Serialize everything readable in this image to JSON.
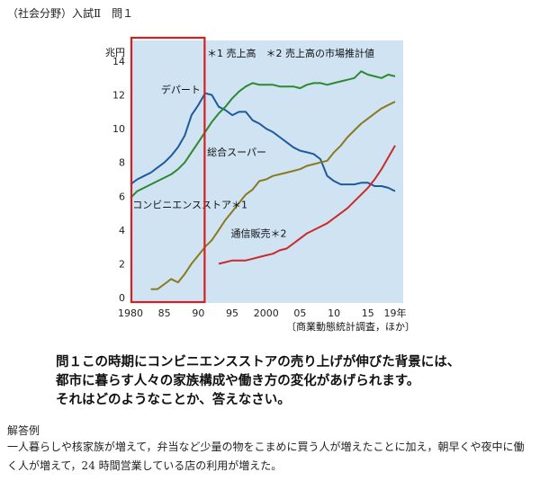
{
  "header": "（社会分野）入試Ⅱ　問１",
  "chart_data": {
    "type": "line",
    "unit_label": "兆円",
    "xlabel": "",
    "ylabel": "",
    "xlim": [
      1980,
      2019
    ],
    "ylim": [
      0,
      14
    ],
    "y_ticks": [
      "0",
      "2",
      "4",
      "6",
      "8",
      "10",
      "12",
      "14"
    ],
    "x_ticks": [
      {
        "value": 1980,
        "label": "1980"
      },
      {
        "value": 1985,
        "label": "85"
      },
      {
        "value": 1990,
        "label": "90"
      },
      {
        "value": 1995,
        "label": "95"
      },
      {
        "value": 2000,
        "label": "2000"
      },
      {
        "value": 2005,
        "label": "05"
      },
      {
        "value": 2010,
        "label": "10"
      },
      {
        "value": 2015,
        "label": "15"
      },
      {
        "value": 2019,
        "label": "19年"
      }
    ],
    "legend_note": "＊1 売上高　＊2 売上高の市場推計値",
    "source": "〔商業動態統計調査，ほか〕",
    "highlight_range": [
      1980,
      1990
    ],
    "grid": false,
    "series": [
      {
        "name": "デパート",
        "color": "#1e5a9c",
        "x": [
          1980,
          1981,
          1982,
          1983,
          1984,
          1985,
          1986,
          1987,
          1988,
          1989,
          1990,
          1991,
          1992,
          1993,
          1994,
          1995,
          1996,
          1997,
          1998,
          1999,
          2000,
          2001,
          2002,
          2003,
          2004,
          2005,
          2006,
          2007,
          2008,
          2009,
          2010,
          2011,
          2012,
          2013,
          2014,
          2015,
          2016,
          2017,
          2018,
          2019
        ],
        "y": [
          6.7,
          7.0,
          7.2,
          7.4,
          7.7,
          8.0,
          8.4,
          8.9,
          9.6,
          10.8,
          11.4,
          12.1,
          12.0,
          11.3,
          11.1,
          10.8,
          11.0,
          11.0,
          10.5,
          10.3,
          10.0,
          9.8,
          9.5,
          9.2,
          8.9,
          8.7,
          8.6,
          8.5,
          8.2,
          7.2,
          6.9,
          6.7,
          6.7,
          6.7,
          6.8,
          6.8,
          6.6,
          6.6,
          6.5,
          6.3
        ]
      },
      {
        "name": "総合スーパー",
        "color": "#2c8a2e",
        "x": [
          1980,
          1981,
          1982,
          1983,
          1984,
          1985,
          1986,
          1987,
          1988,
          1989,
          1990,
          1991,
          1992,
          1993,
          1994,
          1995,
          1996,
          1997,
          1998,
          1999,
          2000,
          2001,
          2002,
          2003,
          2004,
          2005,
          2006,
          2007,
          2008,
          2009,
          2010,
          2011,
          2012,
          2013,
          2014,
          2015,
          2016,
          2017,
          2018,
          2019
        ],
        "y": [
          5.9,
          6.3,
          6.5,
          6.7,
          6.9,
          7.1,
          7.3,
          7.6,
          8.0,
          8.6,
          9.2,
          9.8,
          10.4,
          10.9,
          11.3,
          11.8,
          12.2,
          12.5,
          12.7,
          12.6,
          12.6,
          12.6,
          12.5,
          12.5,
          12.5,
          12.4,
          12.6,
          12.7,
          12.7,
          12.6,
          12.7,
          12.8,
          12.9,
          13.0,
          13.4,
          13.2,
          13.1,
          13.0,
          13.2,
          13.1
        ]
      },
      {
        "name": "コンビニエンスストア＊1",
        "color": "#8a7a1c",
        "x": [
          1983,
          1984,
          1985,
          1986,
          1987,
          1988,
          1989,
          1990,
          1991,
          1992,
          1993,
          1994,
          1995,
          1996,
          1997,
          1998,
          1999,
          2000,
          2001,
          2002,
          2003,
          2004,
          2005,
          2006,
          2007,
          2008,
          2009,
          2010,
          2011,
          2012,
          2013,
          2014,
          2015,
          2016,
          2017,
          2018,
          2019
        ],
        "y": [
          0.5,
          0.5,
          0.8,
          1.1,
          0.9,
          1.4,
          2.0,
          2.5,
          3.0,
          3.4,
          4.0,
          4.6,
          5.1,
          5.6,
          6.1,
          6.4,
          6.9,
          7.0,
          7.2,
          7.3,
          7.4,
          7.5,
          7.6,
          7.8,
          7.9,
          8.0,
          8.1,
          8.6,
          9.0,
          9.5,
          9.9,
          10.3,
          10.6,
          10.9,
          11.2,
          11.4,
          11.6
        ]
      },
      {
        "name": "通信販売＊2",
        "color": "#cc2a2a",
        "x": [
          1993,
          1994,
          1995,
          1996,
          1997,
          1998,
          1999,
          2000,
          2001,
          2002,
          2003,
          2004,
          2005,
          2006,
          2007,
          2008,
          2009,
          2010,
          2011,
          2012,
          2013,
          2014,
          2015,
          2016,
          2017,
          2018,
          2019
        ],
        "y": [
          2.0,
          2.1,
          2.2,
          2.2,
          2.2,
          2.3,
          2.4,
          2.5,
          2.6,
          2.8,
          2.9,
          3.2,
          3.5,
          3.8,
          4.0,
          4.2,
          4.4,
          4.7,
          5.0,
          5.3,
          5.7,
          6.1,
          6.5,
          7.0,
          7.6,
          8.3,
          9.0
        ]
      }
    ],
    "labels": [
      {
        "series": 0,
        "text": "デパート"
      },
      {
        "series": 1,
        "text": "総合スーパー"
      },
      {
        "series": 2,
        "text": "コンビニエンスストア＊1"
      },
      {
        "series": 3,
        "text": "通信販売＊2"
      }
    ]
  },
  "question": {
    "line1": "問１この時期にコンビニエンスストアの売り上げが伸びた背景には、",
    "line2": "都市に暮らす人々の家族構成や働き方の変化があげられます。",
    "line3": "それはどのようなことか、答えなさい。"
  },
  "answer_title": "解答例",
  "answer_text": "一人暮らしや核家族が増えて，弁当など少量の物をこまめに買う人が増えたことに加え，朝早くや夜中に働く人が増えて，24 時間営業している店の利用が増えた。"
}
